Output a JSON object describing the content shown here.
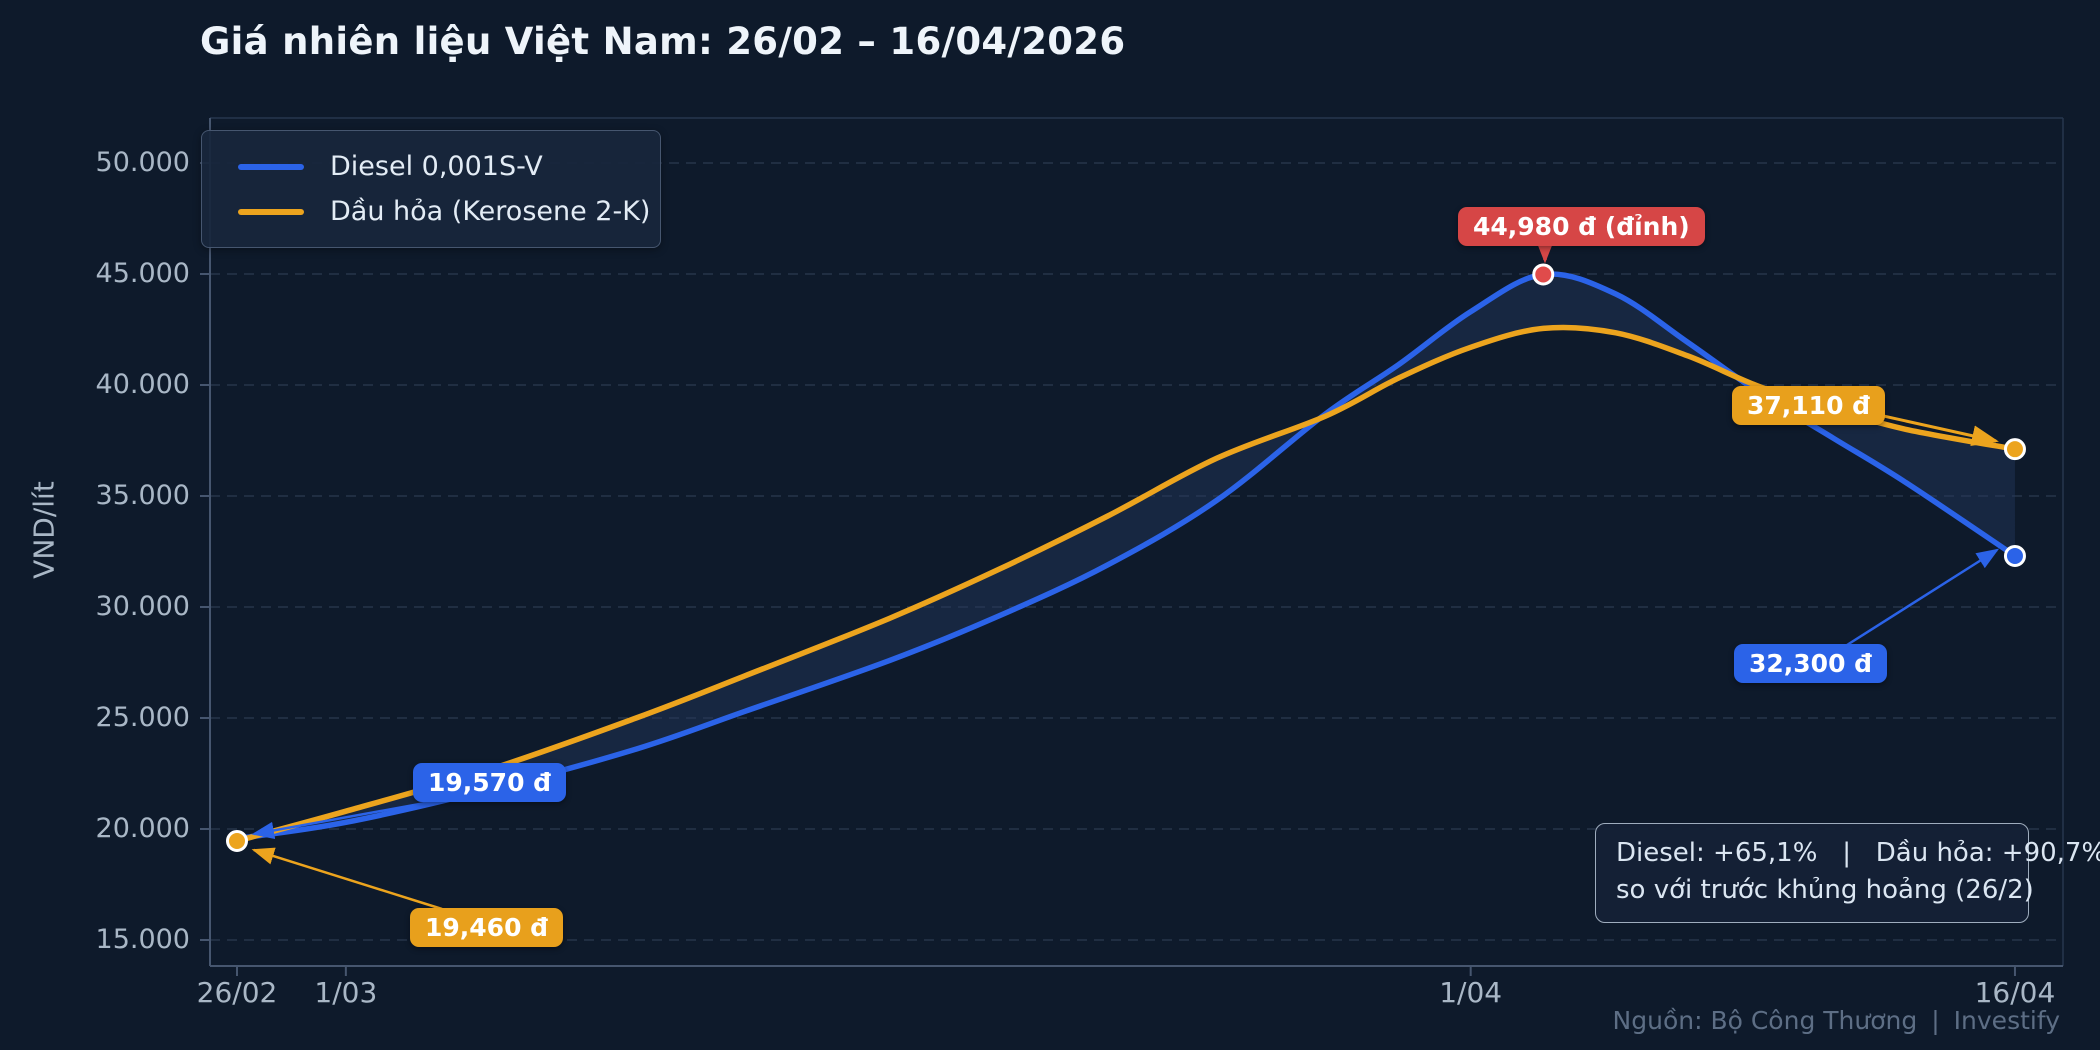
{
  "title": "Giá nhiên liệu Việt Nam: 26/02 – 16/04/2026",
  "ylabel": "VND/lít",
  "legend": {
    "items": [
      {
        "label": "Diesel 0,001S-V",
        "color": "#2b63e8"
      },
      {
        "label": "Dầu hỏa (Kerosene 2-K)",
        "color": "#eca41e"
      }
    ]
  },
  "annotations": {
    "peak": {
      "text": "44,980 đ (đỉnh)",
      "color": "#d64646"
    },
    "diesel_start": {
      "text": "19,570 đ",
      "color": "#2b63e8"
    },
    "kerosene_start": {
      "text": "19,460 đ",
      "color": "#e8a01c"
    },
    "kerosene_end": {
      "text": "37,110 đ",
      "color": "#e8a01c"
    },
    "diesel_end": {
      "text": "32,300 đ",
      "color": "#2b63e8"
    }
  },
  "summary_box": {
    "line1": "Diesel: +65,1%   |   Dầu hỏa: +90,7%",
    "line2": "so với trước khủng hoảng (26/2)"
  },
  "footer": {
    "source": "Nguồn: Bộ Công Thương",
    "separator": "|",
    "brand": "Investify"
  },
  "colors": {
    "background": "#0e1a2b",
    "diesel_line": "#2b63e8",
    "kerosene_line": "#eca41e",
    "peak_red": "#d64646",
    "grid": "#3a4a62",
    "axis": "#46566f",
    "tick_text": "#a9b7c6",
    "fill_between": "#24395f"
  },
  "chart_data": {
    "type": "line",
    "title": "Giá nhiên liệu Việt Nam: 26/02 – 16/04/2026",
    "xlabel": "",
    "ylabel": "VND/lít",
    "x_unit": "days since 26/02/2026",
    "ylim": [
      13800,
      52000
    ],
    "grid": true,
    "grid_style": "dashed",
    "legend_position": "upper left",
    "yticks": [
      {
        "value": 50000,
        "label": "50.000"
      },
      {
        "value": 45000,
        "label": "45.000"
      },
      {
        "value": 40000,
        "label": "40.000"
      },
      {
        "value": 35000,
        "label": "35.000"
      },
      {
        "value": 30000,
        "label": "30.000"
      },
      {
        "value": 25000,
        "label": "25.000"
      },
      {
        "value": 20000,
        "label": "20.000"
      },
      {
        "value": 15000,
        "label": "15.000"
      }
    ],
    "xticks": [
      {
        "day": 0,
        "label": "26/02"
      },
      {
        "day": 3,
        "label": "1/03"
      },
      {
        "day": 34,
        "label": "1/04"
      },
      {
        "day": 49,
        "label": "16/04"
      }
    ],
    "series": [
      {
        "name": "Diesel 0,001S-V",
        "color": "#2b63e8",
        "start_value": 19570,
        "peak_value": 44980,
        "end_value": 32300,
        "change_pct": "+65,1%",
        "points": [
          [
            0,
            19570
          ],
          [
            3,
            20300
          ],
          [
            7,
            21800
          ],
          [
            11,
            23600
          ],
          [
            14,
            25300
          ],
          [
            18,
            27600
          ],
          [
            21,
            29600
          ],
          [
            24,
            31900
          ],
          [
            27,
            34800
          ],
          [
            30,
            38700
          ],
          [
            32,
            40900
          ],
          [
            34,
            43300
          ],
          [
            36,
            44980
          ],
          [
            38,
            44100
          ],
          [
            40,
            41900
          ],
          [
            42,
            39600
          ],
          [
            44,
            37600
          ],
          [
            46,
            35600
          ],
          [
            49,
            32300
          ]
        ]
      },
      {
        "name": "Dầu hỏa (Kerosene 2-K)",
        "color": "#eca41e",
        "start_value": 19460,
        "peak_value": 42550,
        "end_value": 37110,
        "change_pct": "+90,7%",
        "points": [
          [
            0,
            19460
          ],
          [
            3,
            20800
          ],
          [
            7,
            22700
          ],
          [
            11,
            25000
          ],
          [
            14,
            26900
          ],
          [
            18,
            29500
          ],
          [
            21,
            31700
          ],
          [
            24,
            34100
          ],
          [
            27,
            36700
          ],
          [
            30,
            38600
          ],
          [
            32,
            40300
          ],
          [
            34,
            41700
          ],
          [
            36,
            42550
          ],
          [
            38,
            42350
          ],
          [
            40,
            41300
          ],
          [
            42,
            39900
          ],
          [
            44,
            38900
          ],
          [
            46,
            38000
          ],
          [
            49,
            37110
          ]
        ]
      }
    ],
    "markers": [
      {
        "series": "kerosene",
        "day": 0,
        "value": 19460,
        "color": "#eca41e"
      },
      {
        "series": "diesel",
        "day": 36,
        "value": 44980,
        "color": "#e04b4b"
      },
      {
        "series": "kerosene",
        "day": 49,
        "value": 37110,
        "color": "#eca41e"
      },
      {
        "series": "diesel",
        "day": 49,
        "value": 32300,
        "color": "#2b63e8"
      }
    ],
    "fill_between": {
      "color": "#24395f",
      "opacity": 0.42
    }
  }
}
